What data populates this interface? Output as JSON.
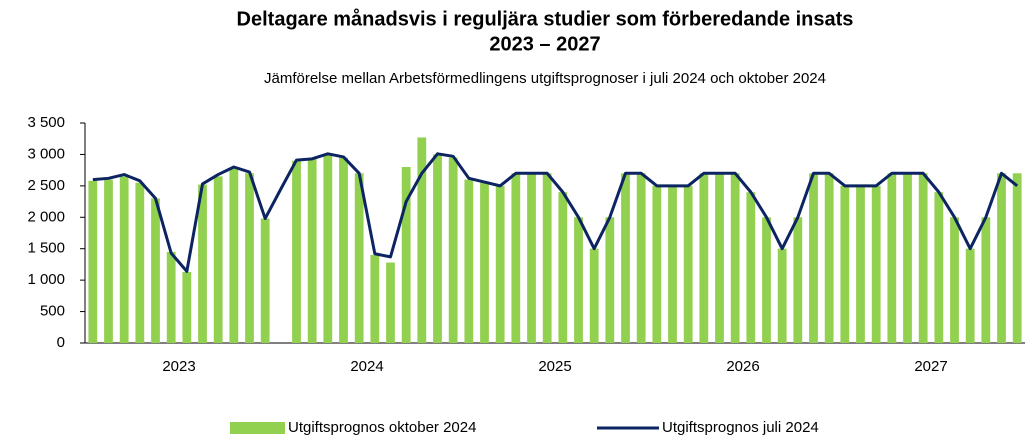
{
  "chart_data": {
    "type": "bar_line",
    "title": [
      "Deltagare månadsvis i reguljära studier som förberedande insats",
      "2023 – 2027"
    ],
    "subtitle": "Jämförelse mellan Arbetsförmedlingens utgiftsprognoser i juli 2024 och oktober 2024",
    "categories": [
      null,
      null,
      null,
      null,
      null,
      null,
      "2023",
      null,
      null,
      null,
      null,
      null,
      null,
      null,
      null,
      null,
      null,
      null,
      "2024",
      null,
      null,
      null,
      null,
      null,
      null,
      null,
      null,
      null,
      null,
      null,
      "2025",
      null,
      null,
      null,
      null,
      null,
      null,
      null,
      null,
      null,
      null,
      null,
      "2026",
      null,
      null,
      null,
      null,
      null,
      null,
      null,
      null,
      null,
      null,
      null,
      "2027",
      null,
      null,
      null,
      null,
      null
    ],
    "series": [
      {
        "name": "Utgiftsprognos oktober 2024",
        "color": "#92d050",
        "kind": "bar",
        "values": [
          2580,
          2600,
          2650,
          2550,
          2300,
          1450,
          1130,
          2520,
          2650,
          2780,
          2700,
          1980,
          null,
          2900,
          2930,
          3000,
          2950,
          2700,
          1400,
          1280,
          2800,
          3270,
          3000,
          2950,
          2600,
          2550,
          2500,
          2700,
          2700,
          2700,
          2400,
          2000,
          1500,
          2000,
          2700,
          2700,
          2500,
          2500,
          2500,
          2700,
          2700,
          2700,
          2400,
          2000,
          1500,
          2000,
          2700,
          2700,
          2500,
          2500,
          2500,
          2700,
          2700,
          2700,
          2400,
          2000,
          1500,
          2000,
          2700,
          2700
        ]
      },
      {
        "name": "Utgiftsprognos juli 2024",
        "color": "#0d2463",
        "kind": "line",
        "values": [
          2600,
          2620,
          2680,
          2580,
          2300,
          1430,
          1140,
          2530,
          2680,
          2800,
          2720,
          1980,
          2450,
          2910,
          2930,
          3010,
          2960,
          2700,
          1420,
          1370,
          2250,
          2700,
          3010,
          2970,
          2620,
          2560,
          2500,
          2700,
          2700,
          2700,
          2400,
          2000,
          1500,
          2000,
          2700,
          2700,
          2500,
          2500,
          2500,
          2700,
          2700,
          2700,
          2400,
          2000,
          1500,
          2000,
          2700,
          2700,
          2500,
          2500,
          2500,
          2700,
          2700,
          2700,
          2400,
          2000,
          1500,
          2000,
          2700,
          2500
        ]
      }
    ],
    "ylim": [
      0,
      3500
    ],
    "yticks": [
      0,
      500,
      {
        "value": 1000,
        "label": "1 000"
      },
      {
        "value": 1500,
        "label": "1 500"
      },
      {
        "value": 2000,
        "label": "2 000"
      },
      {
        "value": 2500,
        "label": "2 500"
      },
      {
        "value": 3000,
        "label": "3 000"
      },
      {
        "value": 3500,
        "label": "3 500"
      }
    ],
    "legend": "bottom"
  }
}
